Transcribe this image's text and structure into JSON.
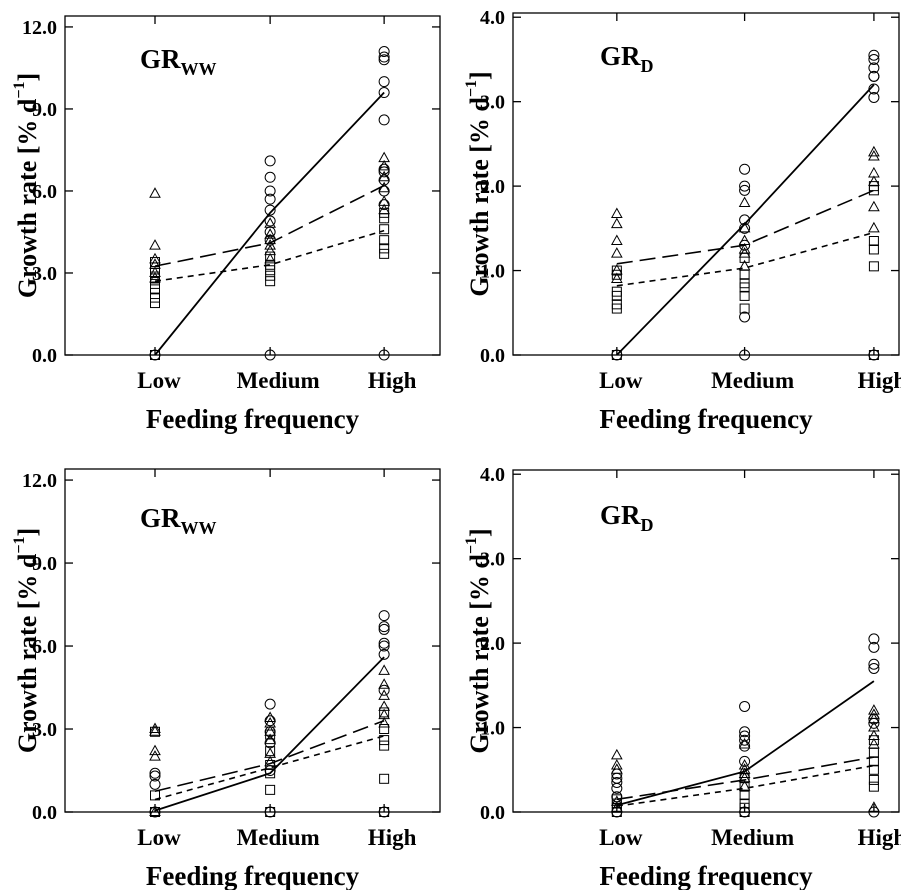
{
  "chart_data": [
    {
      "type": "line",
      "title": "GR",
      "title_subscript": "WW",
      "ylabel": {
        "text": "Growth rate [% d",
        "sup": "−1",
        "end": "]"
      },
      "xlabel": "Feeding frequency",
      "categories": [
        "Low",
        "Medium",
        "High"
      ],
      "ylim": [
        0,
        12.4
      ],
      "yticks": [
        {
          "value": 0,
          "label": "0.0"
        },
        {
          "value": 3,
          "label": "3.0"
        },
        {
          "value": 6,
          "label": "6.0"
        },
        {
          "value": 9,
          "label": "9.0"
        },
        {
          "value": 12,
          "label": "12.0"
        }
      ],
      "series": [
        {
          "marker": "circle",
          "dash": "solid",
          "color": "#000000",
          "values": [
            0,
            5.2,
            9.6
          ],
          "points": [
            [
              0
            ],
            [
              7.1,
              6.5,
              6.0,
              5.7,
              5.3,
              4.9,
              4.5,
              4.2,
              0
            ],
            [
              11.1,
              10.9,
              10.8,
              10.0,
              9.6,
              8.6,
              6.8,
              6.7,
              6.4,
              6.0,
              5.5,
              0
            ]
          ]
        },
        {
          "marker": "triangle",
          "dash": "long",
          "color": "#000000",
          "values": [
            3.25,
            4.1,
            6.2
          ],
          "points": [
            [
              5.9,
              4.0,
              3.5,
              3.3,
              3.0,
              2.8
            ],
            [
              4.8,
              4.4,
              4.2,
              4.0,
              3.8,
              3.5
            ],
            [
              7.2,
              6.9,
              6.5,
              6.1,
              5.6,
              5.3
            ]
          ]
        },
        {
          "marker": "square",
          "dash": "short",
          "color": "#000000",
          "values": [
            2.7,
            3.3,
            4.55
          ],
          "points": [
            [
              3.4,
              3.2,
              3.0,
              2.8,
              2.6,
              2.4,
              2.1,
              1.9,
              0
            ],
            [
              3.6,
              3.3,
              3.1,
              2.9,
              2.7
            ],
            [
              5.2,
              5.0,
              4.6,
              4.2,
              3.9,
              3.7
            ]
          ]
        }
      ]
    },
    {
      "type": "line",
      "title": "GR",
      "title_subscript": "D",
      "ylabel": {
        "text": "Growth rate [% d",
        "sup": "−1",
        "end": "]"
      },
      "xlabel": "Feeding frequency",
      "categories": [
        "Low",
        "Medium",
        "High"
      ],
      "ylim": [
        0,
        4.05
      ],
      "yticks": [
        {
          "value": 0,
          "label": "0.0"
        },
        {
          "value": 1,
          "label": "1.0"
        },
        {
          "value": 2,
          "label": "2.0"
        },
        {
          "value": 3,
          "label": "3.0"
        },
        {
          "value": 4,
          "label": "4.0"
        }
      ],
      "series": [
        {
          "marker": "circle",
          "dash": "solid",
          "color": "#000000",
          "values": [
            0,
            1.55,
            3.2
          ],
          "points": [
            [
              0
            ],
            [
              2.2,
              2.0,
              1.95,
              1.6,
              1.5,
              1.3,
              0.45,
              0
            ],
            [
              3.55,
              3.5,
              3.4,
              3.3,
              3.3,
              3.15,
              3.05,
              0
            ]
          ]
        },
        {
          "marker": "triangle",
          "dash": "long",
          "color": "#000000",
          "values": [
            1.08,
            1.3,
            1.95
          ],
          "points": [
            [
              1.67,
              1.55,
              1.35,
              1.2,
              1.0,
              0.9
            ],
            [
              1.8,
              1.5,
              1.35,
              1.25,
              1.2,
              1.05
            ],
            [
              2.4,
              2.35,
              2.15,
              2.05,
              1.75,
              1.5
            ]
          ]
        },
        {
          "marker": "square",
          "dash": "short",
          "color": "#000000",
          "values": [
            0.82,
            1.03,
            1.45
          ],
          "points": [
            [
              1.0,
              0.95,
              0.75,
              0.7,
              0.6,
              0.55,
              0
            ],
            [
              1.15,
              0.95,
              0.85,
              0.8,
              0.7,
              0.55
            ],
            [
              2.0,
              1.95,
              1.35,
              1.25,
              1.05,
              0
            ]
          ]
        }
      ]
    },
    {
      "type": "line",
      "title": "GR",
      "title_subscript": "WW",
      "ylabel": {
        "text": "Growth rate [% d",
        "sup": "−1",
        "end": "]"
      },
      "xlabel": "Feeding frequency",
      "categories": [
        "Low",
        "Medium",
        "High"
      ],
      "ylim": [
        0,
        12.4
      ],
      "yticks": [
        {
          "value": 0,
          "label": "0.0"
        },
        {
          "value": 3,
          "label": "3.0"
        },
        {
          "value": 6,
          "label": "6.0"
        },
        {
          "value": 9,
          "label": "9.0"
        },
        {
          "value": 12,
          "label": "12.0"
        }
      ],
      "series": [
        {
          "marker": "circle",
          "dash": "solid",
          "color": "#000000",
          "values": [
            0.05,
            1.4,
            5.6
          ],
          "points": [
            [
              1.4,
              1.3,
              1.0,
              0
            ],
            [
              3.9,
              3.3,
              2.9,
              2.5,
              1.5,
              0
            ],
            [
              7.1,
              6.7,
              6.6,
              6.1,
              6.0,
              5.7,
              4.4,
              0
            ]
          ]
        },
        {
          "marker": "triangle",
          "dash": "long",
          "color": "#000000",
          "values": [
            0.75,
            1.75,
            3.3
          ],
          "points": [
            [
              3.0,
              2.9,
              2.2,
              2.0,
              0
            ],
            [
              3.4,
              3.2,
              2.9,
              2.6,
              2.1,
              1.8
            ],
            [
              5.1,
              4.6,
              4.2,
              3.8,
              3.5,
              3.2
            ]
          ]
        },
        {
          "marker": "square",
          "dash": "short",
          "color": "#000000",
          "values": [
            0.45,
            1.6,
            2.75
          ],
          "points": [
            [
              2.9,
              0.6,
              0
            ],
            [
              2.8,
              2.2,
              1.7,
              1.4,
              0.8,
              0
            ],
            [
              3.6,
              3.0,
              2.6,
              2.4,
              1.2,
              0
            ]
          ]
        }
      ]
    },
    {
      "type": "line",
      "title": "GR",
      "title_subscript": "D",
      "ylabel": {
        "text": "Growth rate [% d",
        "sup": "−1",
        "end": "]"
      },
      "xlabel": "Feeding frequency",
      "categories": [
        "Low",
        "Medium",
        "High"
      ],
      "ylim": [
        0,
        4.05
      ],
      "yticks": [
        {
          "value": 0,
          "label": "0.0"
        },
        {
          "value": 1,
          "label": "1.0"
        },
        {
          "value": 2,
          "label": "2.0"
        },
        {
          "value": 3,
          "label": "3.0"
        },
        {
          "value": 4,
          "label": "4.0"
        }
      ],
      "series": [
        {
          "marker": "circle",
          "dash": "solid",
          "color": "#000000",
          "values": [
            0.08,
            0.48,
            1.55
          ],
          "points": [
            [
              0.45,
              0.4,
              0.35,
              0.28,
              0.18,
              0
            ],
            [
              1.25,
              0.95,
              0.9,
              0.85,
              0.78,
              0.6,
              0
            ],
            [
              2.05,
              1.95,
              1.75,
              1.7,
              1.1,
              1.05,
              0
            ]
          ]
        },
        {
          "marker": "triangle",
          "dash": "long",
          "color": "#000000",
          "values": [
            0.15,
            0.38,
            0.65
          ],
          "points": [
            [
              0.67,
              0.55,
              0.5,
              0.12,
              0.05
            ],
            [
              0.8,
              0.55,
              0.5,
              0.45,
              0.4,
              0.3
            ],
            [
              1.2,
              1.15,
              1.1,
              1.0,
              0.9,
              0.8,
              0.05
            ]
          ]
        },
        {
          "marker": "square",
          "dash": "short",
          "color": "#000000",
          "values": [
            0.07,
            0.28,
            0.55
          ],
          "points": [
            [
              0.15,
              0.1,
              0.05,
              0
            ],
            [
              0.4,
              0.3,
              0.2,
              0.1,
              0.05,
              0
            ],
            [
              0.85,
              0.7,
              0.6,
              0.5,
              0.38,
              0.3
            ]
          ]
        }
      ]
    }
  ]
}
